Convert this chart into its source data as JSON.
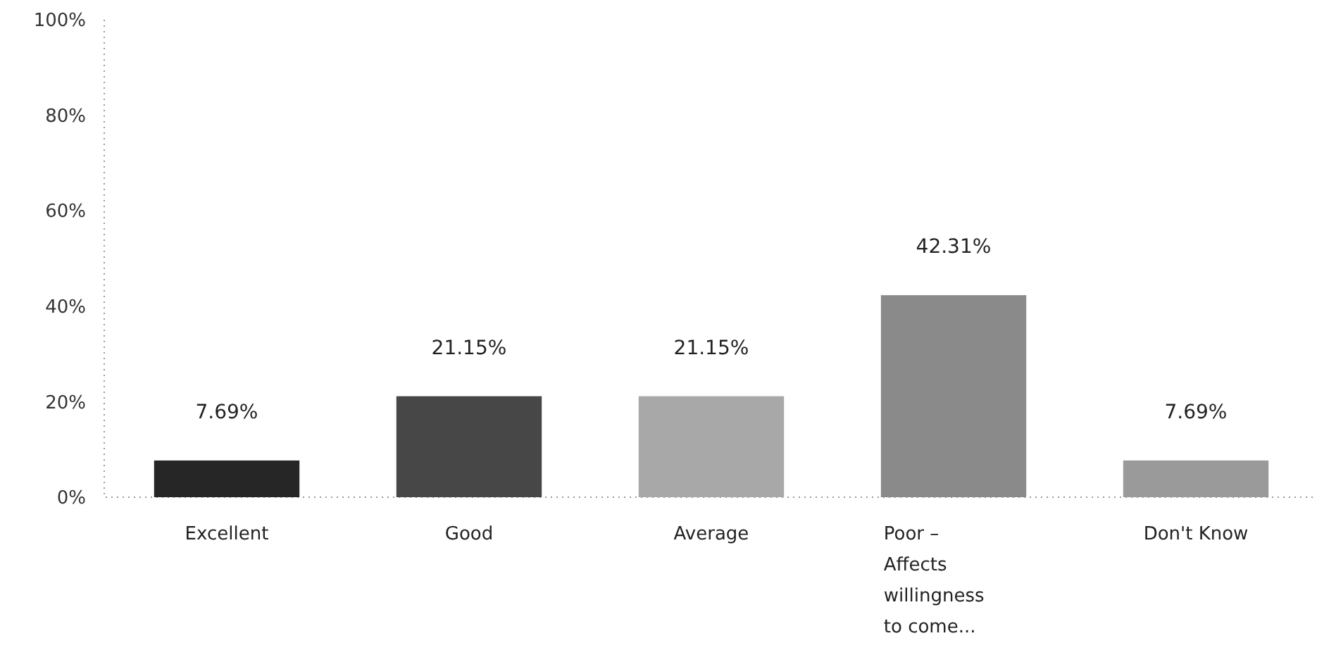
{
  "chart_data": {
    "type": "bar",
    "categories": [
      "Excellent",
      "Good",
      "Average",
      "Poor – Affects willingness to come...",
      "Don't Know"
    ],
    "values": [
      7.69,
      21.15,
      21.15,
      42.31,
      7.69
    ],
    "colors": [
      "#262626",
      "#474747",
      "#a8a8a8",
      "#8a8a8a",
      "#9a9a9a"
    ],
    "value_labels": [
      "7.69%",
      "21.15%",
      "21.15%",
      "42.31%",
      "7.69%"
    ],
    "ylim": [
      0,
      100
    ],
    "yticks": [
      {
        "value": 0,
        "label": "0%"
      },
      {
        "value": 20,
        "label": "20%"
      },
      {
        "value": 40,
        "label": "40%"
      },
      {
        "value": 60,
        "label": "60%"
      },
      {
        "value": 80,
        "label": "80%"
      },
      {
        "value": 100,
        "label": "100%"
      }
    ]
  }
}
